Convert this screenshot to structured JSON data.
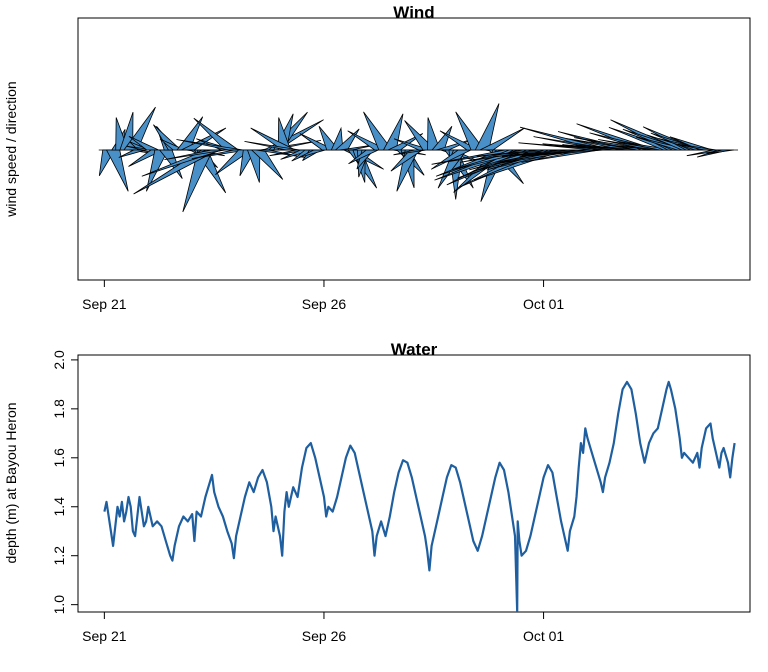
{
  "colors": {
    "wind_fill": "#4a90c8",
    "wind_stroke": "#000000",
    "water_line": "#1f5fa0"
  },
  "chart_data": [
    {
      "type": "wind-barb",
      "title": "Wind",
      "ylabel": "wind speed / direction",
      "x_tick_labels": [
        "Sep 21",
        "Sep 26",
        "Oct 01"
      ],
      "x_tick_days": [
        0,
        5,
        10
      ],
      "xlim_days": [
        -0.6,
        14.7
      ],
      "axes": [
        "bottom"
      ],
      "note_series": "days after Sep 21; each entry = [day, wind speed index, direction degrees]",
      "series": [
        [
          0.0,
          0.3,
          90
        ],
        [
          0.1,
          0.5,
          200
        ],
        [
          0.2,
          0.8,
          160
        ],
        [
          0.3,
          0.4,
          20
        ],
        [
          0.4,
          0.6,
          350
        ],
        [
          0.5,
          0.7,
          10
        ],
        [
          0.6,
          0.9,
          30
        ],
        [
          0.7,
          0.5,
          100
        ],
        [
          0.8,
          0.4,
          250
        ],
        [
          0.9,
          0.3,
          300
        ],
        [
          1.0,
          0.4,
          280
        ],
        [
          1.1,
          0.5,
          300
        ],
        [
          1.2,
          0.6,
          240
        ],
        [
          1.3,
          0.8,
          200
        ],
        [
          1.4,
          0.6,
          150
        ],
        [
          1.5,
          0.5,
          330
        ],
        [
          1.6,
          0.6,
          320
        ],
        [
          1.7,
          0.4,
          300
        ],
        [
          1.8,
          0.7,
          30
        ],
        [
          1.9,
          0.8,
          60
        ],
        [
          2.0,
          0.6,
          100
        ],
        [
          2.1,
          0.5,
          130
        ],
        [
          2.2,
          0.9,
          150
        ],
        [
          2.3,
          1.2,
          200
        ],
        [
          2.4,
          1.6,
          240
        ],
        [
          2.5,
          1.4,
          250
        ],
        [
          2.6,
          1.0,
          260
        ],
        [
          2.7,
          0.8,
          270
        ],
        [
          2.8,
          0.6,
          290
        ],
        [
          2.9,
          0.9,
          310
        ],
        [
          3.0,
          1.1,
          280
        ],
        [
          3.1,
          0.9,
          260
        ],
        [
          3.2,
          0.7,
          230
        ],
        [
          3.3,
          0.5,
          200
        ],
        [
          3.4,
          0.6,
          170
        ],
        [
          3.5,
          0.7,
          140
        ],
        [
          3.6,
          0.8,
          100
        ],
        [
          3.7,
          1.0,
          80
        ],
        [
          3.8,
          1.1,
          60
        ],
        [
          3.9,
          0.9,
          40
        ],
        [
          4.0,
          0.7,
          20
        ],
        [
          4.1,
          0.6,
          350
        ],
        [
          4.2,
          0.8,
          300
        ],
        [
          4.3,
          0.9,
          280
        ],
        [
          4.4,
          0.7,
          270
        ],
        [
          4.5,
          0.6,
          260
        ],
        [
          4.6,
          0.5,
          250
        ],
        [
          4.7,
          0.4,
          240
        ],
        [
          4.8,
          0.3,
          230
        ],
        [
          4.9,
          0.4,
          250
        ],
        [
          5.0,
          0.5,
          270
        ],
        [
          5.1,
          0.6,
          300
        ],
        [
          5.2,
          0.5,
          330
        ],
        [
          5.3,
          0.4,
          10
        ],
        [
          5.4,
          0.5,
          40
        ],
        [
          5.5,
          0.6,
          80
        ],
        [
          5.6,
          0.7,
          120
        ],
        [
          5.7,
          0.8,
          150
        ],
        [
          5.8,
          0.6,
          170
        ],
        [
          5.9,
          0.5,
          190
        ],
        [
          6.0,
          0.4,
          210
        ],
        [
          6.1,
          0.5,
          240
        ],
        [
          6.2,
          0.6,
          270
        ],
        [
          6.3,
          0.7,
          300
        ],
        [
          6.4,
          0.8,
          330
        ],
        [
          6.5,
          0.7,
          20
        ],
        [
          6.6,
          0.6,
          60
        ],
        [
          6.7,
          0.5,
          100
        ],
        [
          6.8,
          0.6,
          140
        ],
        [
          6.9,
          0.7,
          170
        ],
        [
          7.0,
          0.8,
          200
        ],
        [
          7.1,
          0.6,
          230
        ],
        [
          7.2,
          0.5,
          260
        ],
        [
          7.3,
          0.6,
          290
        ],
        [
          7.4,
          0.7,
          320
        ],
        [
          7.5,
          0.6,
          350
        ],
        [
          7.6,
          0.5,
          30
        ],
        [
          7.7,
          0.6,
          70
        ],
        [
          7.8,
          0.7,
          110
        ],
        [
          7.9,
          0.8,
          150
        ],
        [
          8.0,
          0.9,
          180
        ],
        [
          8.1,
          0.8,
          210
        ],
        [
          8.2,
          0.7,
          240
        ],
        [
          8.3,
          0.6,
          270
        ],
        [
          8.4,
          0.7,
          300
        ],
        [
          8.5,
          0.8,
          330
        ],
        [
          8.6,
          0.9,
          20
        ],
        [
          8.7,
          0.8,
          60
        ],
        [
          8.8,
          0.7,
          100
        ],
        [
          8.9,
          0.8,
          140
        ],
        [
          9.0,
          1.0,
          200
        ],
        [
          9.1,
          1.2,
          230
        ],
        [
          9.2,
          1.4,
          250
        ],
        [
          9.3,
          1.5,
          260
        ],
        [
          9.4,
          1.6,
          250
        ],
        [
          9.5,
          1.5,
          245
        ],
        [
          9.6,
          1.4,
          255
        ],
        [
          9.7,
          1.3,
          260
        ],
        [
          9.8,
          1.5,
          250
        ],
        [
          9.9,
          1.6,
          245
        ],
        [
          10.0,
          1.4,
          255
        ],
        [
          10.1,
          1.3,
          265
        ],
        [
          10.2,
          1.5,
          255
        ],
        [
          10.3,
          1.6,
          250
        ],
        [
          10.4,
          1.4,
          255
        ],
        [
          10.5,
          1.3,
          260
        ],
        [
          10.6,
          1.4,
          265
        ],
        [
          10.7,
          1.5,
          260
        ],
        [
          10.8,
          1.4,
          265
        ],
        [
          10.9,
          1.3,
          270
        ],
        [
          11.0,
          1.2,
          265
        ],
        [
          11.1,
          1.3,
          260
        ],
        [
          11.2,
          1.4,
          265
        ],
        [
          11.3,
          1.5,
          275
        ],
        [
          11.4,
          1.6,
          285
        ],
        [
          11.5,
          1.4,
          280
        ],
        [
          11.6,
          1.3,
          275
        ],
        [
          11.7,
          1.2,
          270
        ],
        [
          11.8,
          1.1,
          275
        ],
        [
          11.9,
          1.3,
          285
        ],
        [
          12.0,
          1.2,
          280
        ],
        [
          12.1,
          1.1,
          275
        ],
        [
          12.2,
          1.2,
          270
        ],
        [
          12.3,
          1.3,
          280
        ],
        [
          12.4,
          1.4,
          290
        ],
        [
          12.5,
          1.2,
          285
        ],
        [
          12.6,
          1.1,
          280
        ],
        [
          12.7,
          1.0,
          275
        ],
        [
          12.8,
          0.9,
          280
        ],
        [
          12.9,
          1.2,
          290
        ],
        [
          13.0,
          1.3,
          295
        ],
        [
          13.1,
          1.1,
          290
        ],
        [
          13.2,
          0.9,
          285
        ],
        [
          13.3,
          0.8,
          290
        ],
        [
          13.4,
          1.0,
          295
        ],
        [
          13.5,
          0.9,
          290
        ],
        [
          13.6,
          0.8,
          285
        ],
        [
          13.7,
          0.7,
          290
        ],
        [
          13.8,
          0.6,
          280
        ],
        [
          13.9,
          0.5,
          270
        ],
        [
          14.0,
          0.6,
          260
        ],
        [
          14.1,
          0.5,
          255
        ],
        [
          14.2,
          0.4,
          260
        ],
        [
          14.3,
          0.3,
          270
        ]
      ]
    },
    {
      "type": "line",
      "title": "Water",
      "ylabel": "depth (m) at Bayou Heron",
      "x_tick_labels": [
        "Sep 21",
        "Sep 26",
        "Oct 01"
      ],
      "x_tick_days": [
        0,
        5,
        10
      ],
      "xlim_days": [
        -0.6,
        14.7
      ],
      "yticks": [
        1.0,
        1.2,
        1.4,
        1.6,
        1.8,
        2.0
      ],
      "ytick_labels": [
        "1.0",
        "1.2",
        "1.4",
        "1.6",
        "1.8",
        "2.0"
      ],
      "ylim": [
        0.97,
        2.02
      ],
      "note_points": "x = days after Sep 21, y = depth (m)",
      "points": [
        [
          0.0,
          1.38
        ],
        [
          0.05,
          1.42
        ],
        [
          0.1,
          1.36
        ],
        [
          0.15,
          1.3
        ],
        [
          0.2,
          1.24
        ],
        [
          0.25,
          1.32
        ],
        [
          0.3,
          1.4
        ],
        [
          0.35,
          1.36
        ],
        [
          0.4,
          1.42
        ],
        [
          0.45,
          1.34
        ],
        [
          0.5,
          1.38
        ],
        [
          0.55,
          1.44
        ],
        [
          0.6,
          1.4
        ],
        [
          0.65,
          1.3
        ],
        [
          0.7,
          1.28
        ],
        [
          0.75,
          1.36
        ],
        [
          0.8,
          1.44
        ],
        [
          0.85,
          1.38
        ],
        [
          0.9,
          1.32
        ],
        [
          0.95,
          1.34
        ],
        [
          1.0,
          1.4
        ],
        [
          1.05,
          1.36
        ],
        [
          1.1,
          1.32
        ],
        [
          1.2,
          1.34
        ],
        [
          1.3,
          1.32
        ],
        [
          1.4,
          1.26
        ],
        [
          1.5,
          1.2
        ],
        [
          1.55,
          1.18
        ],
        [
          1.6,
          1.24
        ],
        [
          1.7,
          1.32
        ],
        [
          1.8,
          1.36
        ],
        [
          1.9,
          1.34
        ],
        [
          2.0,
          1.37
        ],
        [
          2.05,
          1.26
        ],
        [
          2.1,
          1.38
        ],
        [
          2.2,
          1.36
        ],
        [
          2.3,
          1.44
        ],
        [
          2.4,
          1.5
        ],
        [
          2.45,
          1.53
        ],
        [
          2.5,
          1.46
        ],
        [
          2.6,
          1.4
        ],
        [
          2.7,
          1.36
        ],
        [
          2.8,
          1.3
        ],
        [
          2.9,
          1.25
        ],
        [
          2.95,
          1.19
        ],
        [
          3.0,
          1.28
        ],
        [
          3.1,
          1.36
        ],
        [
          3.2,
          1.44
        ],
        [
          3.3,
          1.5
        ],
        [
          3.4,
          1.46
        ],
        [
          3.5,
          1.52
        ],
        [
          3.6,
          1.55
        ],
        [
          3.7,
          1.5
        ],
        [
          3.8,
          1.4
        ],
        [
          3.85,
          1.3
        ],
        [
          3.9,
          1.36
        ],
        [
          4.0,
          1.28
        ],
        [
          4.05,
          1.2
        ],
        [
          4.1,
          1.38
        ],
        [
          4.15,
          1.46
        ],
        [
          4.2,
          1.4
        ],
        [
          4.3,
          1.48
        ],
        [
          4.4,
          1.44
        ],
        [
          4.5,
          1.56
        ],
        [
          4.6,
          1.64
        ],
        [
          4.7,
          1.66
        ],
        [
          4.8,
          1.6
        ],
        [
          4.9,
          1.52
        ],
        [
          5.0,
          1.44
        ],
        [
          5.05,
          1.36
        ],
        [
          5.1,
          1.4
        ],
        [
          5.2,
          1.38
        ],
        [
          5.3,
          1.44
        ],
        [
          5.4,
          1.52
        ],
        [
          5.5,
          1.6
        ],
        [
          5.6,
          1.65
        ],
        [
          5.7,
          1.62
        ],
        [
          5.8,
          1.54
        ],
        [
          5.9,
          1.46
        ],
        [
          6.0,
          1.38
        ],
        [
          6.1,
          1.3
        ],
        [
          6.15,
          1.2
        ],
        [
          6.2,
          1.28
        ],
        [
          6.3,
          1.34
        ],
        [
          6.4,
          1.28
        ],
        [
          6.5,
          1.36
        ],
        [
          6.6,
          1.46
        ],
        [
          6.7,
          1.54
        ],
        [
          6.8,
          1.59
        ],
        [
          6.9,
          1.58
        ],
        [
          7.0,
          1.52
        ],
        [
          7.1,
          1.44
        ],
        [
          7.2,
          1.36
        ],
        [
          7.3,
          1.28
        ],
        [
          7.35,
          1.22
        ],
        [
          7.4,
          1.14
        ],
        [
          7.45,
          1.24
        ],
        [
          7.5,
          1.28
        ],
        [
          7.6,
          1.36
        ],
        [
          7.7,
          1.44
        ],
        [
          7.8,
          1.52
        ],
        [
          7.9,
          1.57
        ],
        [
          8.0,
          1.56
        ],
        [
          8.1,
          1.5
        ],
        [
          8.2,
          1.42
        ],
        [
          8.3,
          1.34
        ],
        [
          8.4,
          1.26
        ],
        [
          8.5,
          1.22
        ],
        [
          8.6,
          1.28
        ],
        [
          8.7,
          1.36
        ],
        [
          8.8,
          1.44
        ],
        [
          8.9,
          1.52
        ],
        [
          9.0,
          1.58
        ],
        [
          9.1,
          1.55
        ],
        [
          9.2,
          1.46
        ],
        [
          9.3,
          1.34
        ],
        [
          9.35,
          1.28
        ],
        [
          9.4,
          0.97
        ],
        [
          9.41,
          1.34
        ],
        [
          9.45,
          1.26
        ],
        [
          9.5,
          1.2
        ],
        [
          9.6,
          1.22
        ],
        [
          9.7,
          1.28
        ],
        [
          9.8,
          1.36
        ],
        [
          9.9,
          1.44
        ],
        [
          10.0,
          1.52
        ],
        [
          10.1,
          1.57
        ],
        [
          10.2,
          1.54
        ],
        [
          10.3,
          1.44
        ],
        [
          10.4,
          1.34
        ],
        [
          10.5,
          1.26
        ],
        [
          10.55,
          1.22
        ],
        [
          10.6,
          1.3
        ],
        [
          10.7,
          1.36
        ],
        [
          10.75,
          1.44
        ],
        [
          10.8,
          1.56
        ],
        [
          10.85,
          1.66
        ],
        [
          10.9,
          1.62
        ],
        [
          10.95,
          1.72
        ],
        [
          11.0,
          1.68
        ],
        [
          11.1,
          1.62
        ],
        [
          11.2,
          1.56
        ],
        [
          11.3,
          1.5
        ],
        [
          11.35,
          1.46
        ],
        [
          11.4,
          1.52
        ],
        [
          11.5,
          1.58
        ],
        [
          11.6,
          1.66
        ],
        [
          11.7,
          1.78
        ],
        [
          11.8,
          1.88
        ],
        [
          11.9,
          1.91
        ],
        [
          12.0,
          1.88
        ],
        [
          12.1,
          1.78
        ],
        [
          12.2,
          1.66
        ],
        [
          12.3,
          1.58
        ],
        [
          12.4,
          1.66
        ],
        [
          12.5,
          1.7
        ],
        [
          12.6,
          1.72
        ],
        [
          12.7,
          1.8
        ],
        [
          12.8,
          1.88
        ],
        [
          12.85,
          1.91
        ],
        [
          12.9,
          1.88
        ],
        [
          13.0,
          1.8
        ],
        [
          13.1,
          1.68
        ],
        [
          13.15,
          1.6
        ],
        [
          13.2,
          1.62
        ],
        [
          13.3,
          1.6
        ],
        [
          13.4,
          1.58
        ],
        [
          13.5,
          1.62
        ],
        [
          13.55,
          1.56
        ],
        [
          13.6,
          1.64
        ],
        [
          13.7,
          1.72
        ],
        [
          13.8,
          1.74
        ],
        [
          13.85,
          1.68
        ],
        [
          13.9,
          1.64
        ],
        [
          14.0,
          1.56
        ],
        [
          14.05,
          1.62
        ],
        [
          14.1,
          1.64
        ],
        [
          14.2,
          1.58
        ],
        [
          14.25,
          1.52
        ],
        [
          14.3,
          1.6
        ],
        [
          14.35,
          1.66
        ]
      ]
    }
  ]
}
